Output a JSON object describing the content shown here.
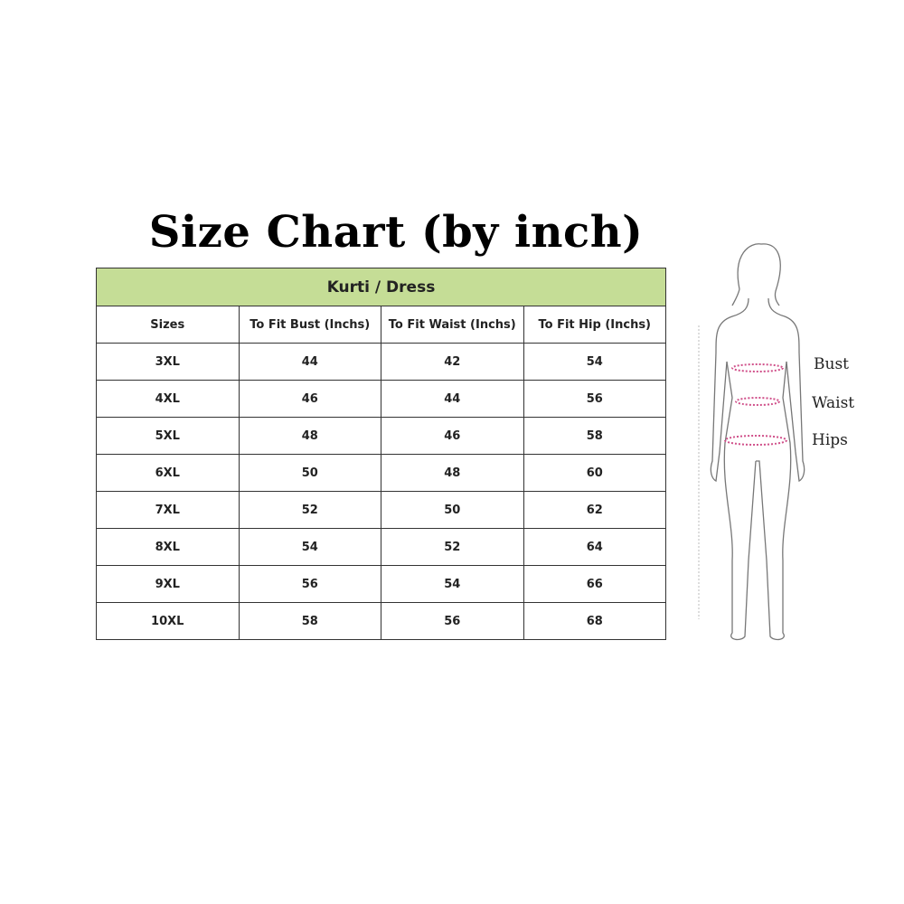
{
  "title": "Size Chart (by inch)",
  "table": {
    "banner": "Kurti / Dress",
    "banner_color": "#c5dd96",
    "headers": [
      "Sizes",
      "To Fit Bust (Inchs)",
      "To Fit Waist (Inchs)",
      "To Fit Hip (Inchs)"
    ],
    "rows": [
      [
        "3XL",
        "44",
        "42",
        "54"
      ],
      [
        "4XL",
        "46",
        "44",
        "56"
      ],
      [
        "5XL",
        "48",
        "46",
        "58"
      ],
      [
        "6XL",
        "50",
        "48",
        "60"
      ],
      [
        "7XL",
        "52",
        "50",
        "62"
      ],
      [
        "8XL",
        "54",
        "52",
        "64"
      ],
      [
        "9XL",
        "56",
        "54",
        "66"
      ],
      [
        "10XL",
        "58",
        "56",
        "68"
      ]
    ]
  },
  "figure": {
    "labels": {
      "bust": "Bust",
      "waist": "Waist",
      "hips": "Hips"
    },
    "measure_color": "#d0508a"
  }
}
